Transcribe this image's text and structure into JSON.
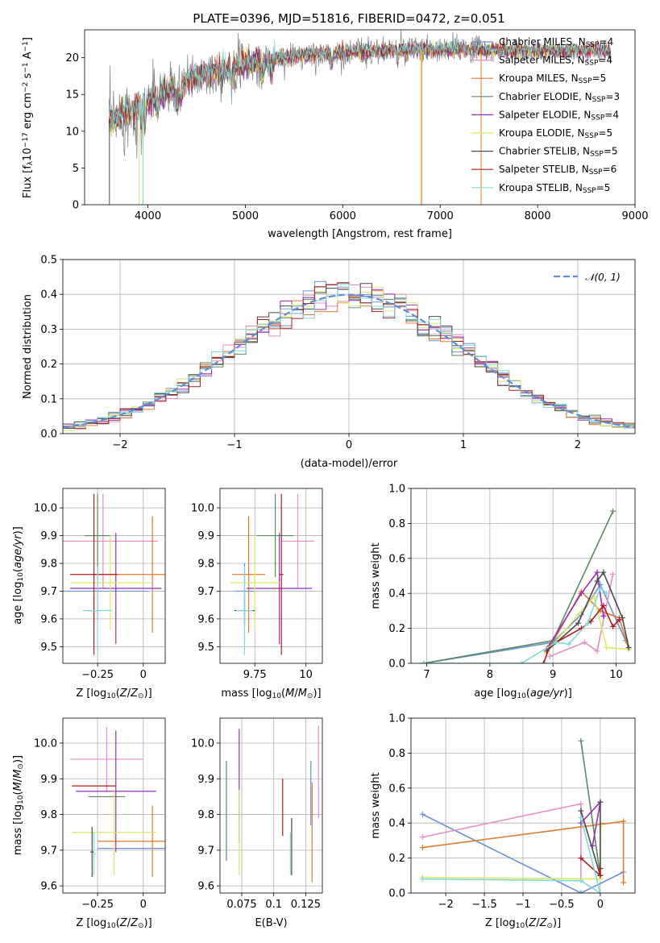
{
  "figure_title": "PLATE=0396, MJD=51816, FIBERID=0472, z=0.051",
  "colors": {
    "Chabrier MILES": "#6a8fd8",
    "Salpeter MILES": "#e58fc6",
    "Kroupa MILES": "#e07b2b",
    "Chabrier ELODIE": "#5a8a62",
    "Salpeter ELODIE": "#9a2fb5",
    "Kroupa ELODIE": "#dde86a",
    "Chabrier STELIB": "#4a4a4a",
    "Salpeter STELIB": "#b01c1c",
    "Kroupa STELIB": "#7fd8d8",
    "data": "#808080",
    "normal": "#5b8ee0"
  },
  "chart_data": [
    {
      "id": "spectrum",
      "type": "line",
      "xlabel": "wavelength [Angstrom, rest frame]",
      "ylabel": "Flux [f_λ10^{-17} erg cm^{-2} s^{-1} A^{-1}]",
      "xlim": [
        3350,
        9000
      ],
      "ylim": [
        0,
        23.8
      ],
      "xticks": [
        4000,
        5000,
        6000,
        7000,
        8000,
        9000
      ],
      "yticks": [
        0,
        5,
        10,
        15,
        20
      ],
      "grid": false,
      "legend_position": "right",
      "data_range": [
        3600,
        7420
      ],
      "continuum": [
        [
          3600,
          11.5
        ],
        [
          3800,
          12.5
        ],
        [
          4000,
          14.0
        ],
        [
          4200,
          15.5
        ],
        [
          4500,
          17.5
        ],
        [
          5000,
          19.2
        ],
        [
          5500,
          20.2
        ],
        [
          6000,
          20.7
        ],
        [
          6500,
          21.0
        ],
        [
          7000,
          21.1
        ],
        [
          7420,
          21.2
        ]
      ],
      "model_range": [
        3600,
        8750
      ],
      "legend": [
        {
          "name": "Chabrier MILES",
          "base": "Chabrier MILES",
          "ssp": "4"
        },
        {
          "name": "Salpeter MILES",
          "base": "Salpeter MILES",
          "ssp": "4"
        },
        {
          "name": "Kroupa MILES",
          "base": "Kroupa MILES",
          "ssp": "5"
        },
        {
          "name": "Chabrier ELODIE",
          "base": "Chabrier ELODIE",
          "ssp": "3"
        },
        {
          "name": "Salpeter ELODIE",
          "base": "Salpeter ELODIE",
          "ssp": "4"
        },
        {
          "name": "Kroupa ELODIE",
          "base": "Kroupa ELODIE",
          "ssp": "5"
        },
        {
          "name": "Chabrier STELIB",
          "base": "Chabrier STELIB",
          "ssp": "5"
        },
        {
          "name": "Salpeter STELIB",
          "base": "Salpeter STELIB",
          "ssp": "6"
        },
        {
          "name": "Kroupa STELIB",
          "base": "Kroupa STELIB",
          "ssp": "5"
        }
      ]
    },
    {
      "id": "residual_hist",
      "type": "histogram",
      "xlabel": "(data-model)/error",
      "ylabel": "Normed distribution",
      "xlim": [
        -2.5,
        2.5
      ],
      "ylim": [
        0,
        0.5
      ],
      "xticks": [
        -2,
        -1,
        0,
        1,
        2
      ],
      "yticks": [
        0.0,
        0.1,
        0.2,
        0.3,
        0.4,
        0.5
      ],
      "grid": true,
      "legend_label": "𝒩(0, 1)",
      "legend_position": "top-right",
      "bin_width": 0.1
    },
    {
      "id": "age_Z",
      "type": "errorbar",
      "xlabel": "Z [log10(Z/Z⊙)]",
      "ylabel": "age  [log10(age/yr)]",
      "xlim": [
        -0.44,
        0.12
      ],
      "ylim": [
        9.44,
        10.07
      ],
      "xticks": [
        -0.25,
        0.0
      ],
      "yticks": [
        9.5,
        9.6,
        9.7,
        9.8,
        9.9,
        10.0
      ],
      "grid": true,
      "points": [
        {
          "model": "Chabrier MILES",
          "x": -0.25,
          "y": 9.7,
          "xerr": 0.28,
          "yerr": 0.1
        },
        {
          "model": "Salpeter MILES",
          "x": -0.22,
          "y": 9.88,
          "xerr": 0.3,
          "yerr": 0.17
        },
        {
          "model": "Kroupa MILES",
          "x": 0.05,
          "y": 9.76,
          "xerr": 0.33,
          "yerr": 0.21
        },
        {
          "model": "Chabrier ELODIE",
          "x": -0.25,
          "y": 9.9,
          "xerr": 0.07,
          "yerr": 0.15
        },
        {
          "model": "Salpeter ELODIE",
          "x": -0.15,
          "y": 9.71,
          "xerr": 0.25,
          "yerr": 0.2
        },
        {
          "model": "Kroupa ELODIE",
          "x": -0.18,
          "y": 9.73,
          "xerr": 0.22,
          "yerr": 0.17
        },
        {
          "model": "Chabrier STELIB",
          "x": -0.27,
          "y": 9.63,
          "xerr": 0.04,
          "yerr": 0.05
        },
        {
          "model": "Salpeter STELIB",
          "x": -0.27,
          "y": 9.76,
          "xerr": 0.13,
          "yerr": 0.29
        },
        {
          "model": "Kroupa STELIB",
          "x": -0.25,
          "y": 9.63,
          "xerr": 0.08,
          "yerr": 0.16
        }
      ]
    },
    {
      "id": "age_mass",
      "type": "errorbar",
      "xlabel": "mass [log10(M/M⊙)]",
      "ylabel": "",
      "xlim": [
        9.58,
        10.08
      ],
      "ylim": [
        9.44,
        10.07
      ],
      "xticks": [
        9.75,
        10.0
      ],
      "yticks": [
        9.5,
        9.6,
        9.7,
        9.8,
        9.9,
        10.0
      ],
      "grid": true,
      "points": [
        {
          "model": "Chabrier MILES",
          "x": 9.7,
          "y": 9.7,
          "xerr": 0.05,
          "yerr": 0.1
        },
        {
          "model": "Salpeter MILES",
          "x": 9.96,
          "y": 9.88,
          "xerr": 0.08,
          "yerr": 0.17
        },
        {
          "model": "Kroupa MILES",
          "x": 9.72,
          "y": 9.76,
          "xerr": 0.08,
          "yerr": 0.21
        },
        {
          "model": "Chabrier ELODIE",
          "x": 9.85,
          "y": 9.9,
          "xerr": 0.09,
          "yerr": 0.15
        },
        {
          "model": "Salpeter ELODIE",
          "x": 9.87,
          "y": 9.71,
          "xerr": 0.16,
          "yerr": 0.2
        },
        {
          "model": "Kroupa ELODIE",
          "x": 9.75,
          "y": 9.73,
          "xerr": 0.12,
          "yerr": 0.17
        },
        {
          "model": "Chabrier STELIB",
          "x": 9.7,
          "y": 9.63,
          "xerr": 0.05,
          "yerr": 0.05
        },
        {
          "model": "Salpeter STELIB",
          "x": 9.88,
          "y": 9.76,
          "xerr": 0.01,
          "yerr": 0.29
        },
        {
          "model": "Kroupa STELIB",
          "x": 9.7,
          "y": 9.63,
          "xerr": 0.04,
          "yerr": 0.16
        }
      ]
    },
    {
      "id": "weight_age",
      "type": "line",
      "xlabel": "age  [log10(age/yr)]",
      "ylabel": "mass weight",
      "xlim": [
        6.75,
        10.3
      ],
      "ylim": [
        0,
        1.0
      ],
      "xticks": [
        7,
        8,
        9,
        10
      ],
      "yticks": [
        0.0,
        0.2,
        0.4,
        0.6,
        0.8,
        1.0
      ],
      "grid": true,
      "series": [
        {
          "model": "Chabrier MILES",
          "points": [
            [
              6.95,
              0.0
            ],
            [
              9.0,
              0.12
            ],
            [
              9.45,
              0.28
            ],
            [
              9.75,
              0.45
            ],
            [
              10.15,
              0.13
            ]
          ]
        },
        {
          "model": "Salpeter MILES",
          "points": [
            [
              8.95,
              0.04
            ],
            [
              9.5,
              0.12
            ],
            [
              9.7,
              0.07
            ],
            [
              9.95,
              0.51
            ]
          ]
        },
        {
          "model": "Kroupa MILES",
          "points": [
            [
              8.9,
              0.06
            ],
            [
              9.45,
              0.41
            ],
            [
              9.75,
              0.3
            ],
            [
              10.05,
              0.26
            ],
            [
              10.2,
              0.08
            ]
          ]
        },
        {
          "model": "Chabrier ELODIE",
          "points": [
            [
              6.95,
              0.0
            ],
            [
              9.0,
              0.13
            ],
            [
              9.95,
              0.87
            ]
          ]
        },
        {
          "model": "Salpeter ELODIE",
          "points": [
            [
              8.9,
              0.08
            ],
            [
              9.45,
              0.4
            ],
            [
              9.7,
              0.52
            ],
            [
              9.8,
              0.27
            ]
          ]
        },
        {
          "model": "Kroupa ELODIE",
          "points": [
            [
              8.9,
              0.06
            ],
            [
              9.4,
              0.28
            ],
            [
              9.65,
              0.38
            ],
            [
              9.85,
              0.09
            ],
            [
              10.2,
              0.08
            ]
          ]
        },
        {
          "model": "Chabrier STELIB",
          "points": [
            [
              8.9,
              0.07
            ],
            [
              9.4,
              0.23
            ],
            [
              9.7,
              0.47
            ],
            [
              9.8,
              0.52
            ],
            [
              10.1,
              0.26
            ],
            [
              10.2,
              0.09
            ]
          ]
        },
        {
          "model": "Salpeter STELIB",
          "points": [
            [
              8.85,
              0.0
            ],
            [
              8.95,
              0.1
            ],
            [
              9.45,
              0.2
            ],
            [
              9.6,
              0.24
            ],
            [
              9.8,
              0.33
            ],
            [
              9.95,
              0.21
            ],
            [
              10.05,
              0.25
            ]
          ]
        },
        {
          "model": "Kroupa STELIB",
          "points": [
            [
              6.95,
              0.0
            ],
            [
              8.5,
              0.0
            ],
            [
              9.05,
              0.12
            ],
            [
              9.25,
              0.11
            ],
            [
              9.55,
              0.23
            ],
            [
              9.75,
              0.43
            ],
            [
              9.85,
              0.4
            ]
          ]
        }
      ]
    },
    {
      "id": "mass_Z",
      "type": "errorbar",
      "xlabel": "Z [log10(Z/Z⊙)]",
      "ylabel": "mass [log10(M/M⊙)]",
      "xlim": [
        -0.44,
        0.12
      ],
      "ylim": [
        9.58,
        10.07
      ],
      "xticks": [
        -0.25,
        0.0
      ],
      "yticks": [
        9.6,
        9.7,
        9.8,
        9.9,
        10.0
      ],
      "grid": true,
      "points": [
        {
          "model": "Chabrier MILES",
          "x": 0.05,
          "y": 9.705,
          "xerr": 0.3,
          "yerr": 0.0
        },
        {
          "model": "Salpeter MILES",
          "x": -0.2,
          "y": 9.955,
          "xerr": 0.2,
          "yerr": 0.09
        },
        {
          "model": "Kroupa MILES",
          "x": 0.05,
          "y": 9.725,
          "xerr": 0.3,
          "yerr": 0.1
        },
        {
          "model": "Chabrier ELODIE",
          "x": -0.2,
          "y": 9.85,
          "xerr": 0.1,
          "yerr": 0.0
        },
        {
          "model": "Salpeter ELODIE",
          "x": -0.15,
          "y": 9.865,
          "xerr": 0.22,
          "yerr": 0.17
        },
        {
          "model": "Kroupa ELODIE",
          "x": -0.16,
          "y": 9.75,
          "xerr": 0.23,
          "yerr": 0.12
        },
        {
          "model": "Chabrier STELIB",
          "x": -0.28,
          "y": 9.695,
          "xerr": 0.01,
          "yerr": 0.07
        },
        {
          "model": "Salpeter STELIB",
          "x": -0.27,
          "y": 9.88,
          "xerr": 0.12,
          "yerr": 0.0
        },
        {
          "model": "Kroupa STELIB",
          "x": -0.27,
          "y": 9.69,
          "xerr": 0.01,
          "yerr": 0.06
        }
      ]
    },
    {
      "id": "mass_EBV",
      "type": "errorbar",
      "xlabel": "E(B-V)",
      "ylabel": "",
      "xlim": [
        0.058,
        0.138
      ],
      "ylim": [
        9.58,
        10.07
      ],
      "xticks": [
        0.075,
        0.1,
        0.125
      ],
      "yticks": [
        9.6,
        9.7,
        9.8,
        9.9,
        10.0
      ],
      "grid": true,
      "points": [
        {
          "model": "Chabrier MILES",
          "x": 0.129,
          "y": 9.86,
          "xerr": 0,
          "yerr": 0.09
        },
        {
          "model": "Salpeter MILES",
          "x": 0.135,
          "y": 9.92,
          "xerr": 0,
          "yerr": 0.13
        },
        {
          "model": "Kroupa MILES",
          "x": 0.13,
          "y": 9.75,
          "xerr": 0,
          "yerr": 0.14
        },
        {
          "model": "Chabrier ELODIE",
          "x": 0.063,
          "y": 9.81,
          "xerr": 0,
          "yerr": 0.14
        },
        {
          "model": "Salpeter ELODIE",
          "x": 0.073,
          "y": 9.88,
          "xerr": 0,
          "yerr": 0.16
        },
        {
          "model": "Kroupa ELODIE",
          "x": 0.073,
          "y": 9.75,
          "xerr": 0,
          "yerr": 0.12
        },
        {
          "model": "Chabrier STELIB",
          "x": 0.114,
          "y": 9.71,
          "xerr": 0,
          "yerr": 0.08
        },
        {
          "model": "Salpeter STELIB",
          "x": 0.107,
          "y": 9.82,
          "xerr": 0,
          "yerr": 0.08
        },
        {
          "model": "Kroupa STELIB",
          "x": 0.113,
          "y": 9.69,
          "xerr": 0,
          "yerr": 0.06
        }
      ]
    },
    {
      "id": "weight_Z",
      "type": "line",
      "xlabel": "Z [log10(Z/Z⊙)]",
      "ylabel": "mass weight",
      "xlim": [
        -2.45,
        0.45
      ],
      "ylim": [
        0,
        1.0
      ],
      "xticks": [
        -2.0,
        -1.5,
        -1.0,
        -0.5,
        0.0
      ],
      "yticks": [
        0.0,
        0.2,
        0.4,
        0.6,
        0.8,
        1.0
      ],
      "grid": true,
      "series": [
        {
          "model": "Chabrier MILES",
          "points": [
            [
              -2.3,
              0.45
            ],
            [
              -0.25,
              0.0
            ],
            [
              0.3,
              0.12
            ]
          ]
        },
        {
          "model": "Salpeter MILES",
          "points": [
            [
              -2.3,
              0.32
            ],
            [
              -0.25,
              0.51
            ],
            [
              -0.25,
              0.08
            ]
          ]
        },
        {
          "model": "Kroupa MILES",
          "points": [
            [
              -2.3,
              0.26
            ],
            [
              0.3,
              0.41
            ],
            [
              0.3,
              0.06
            ]
          ]
        },
        {
          "model": "Chabrier ELODIE",
          "points": [
            [
              -0.25,
              0.87
            ],
            [
              0.0,
              0.1
            ]
          ]
        },
        {
          "model": "Salpeter ELODIE",
          "points": [
            [
              -0.25,
              0.4
            ],
            [
              0.0,
              0.52
            ],
            [
              -0.1,
              0.27
            ]
          ]
        },
        {
          "model": "Kroupa ELODIE",
          "points": [
            [
              -2.3,
              0.09
            ],
            [
              0.0,
              0.08
            ],
            [
              0.0,
              0.38
            ]
          ]
        },
        {
          "model": "Chabrier STELIB",
          "points": [
            [
              -0.25,
              0.47
            ],
            [
              0.0,
              0.1
            ],
            [
              0.0,
              0.52
            ]
          ]
        },
        {
          "model": "Salpeter STELIB",
          "points": [
            [
              -0.25,
              0.2
            ],
            [
              0.0,
              0.1
            ],
            [
              0.0,
              0.14
            ]
          ]
        },
        {
          "model": "Kroupa STELIB",
          "points": [
            [
              -2.3,
              0.08
            ],
            [
              -0.25,
              0.07
            ],
            [
              0.0,
              0.0
            ],
            [
              -0.25,
              0.43
            ]
          ]
        }
      ]
    }
  ]
}
